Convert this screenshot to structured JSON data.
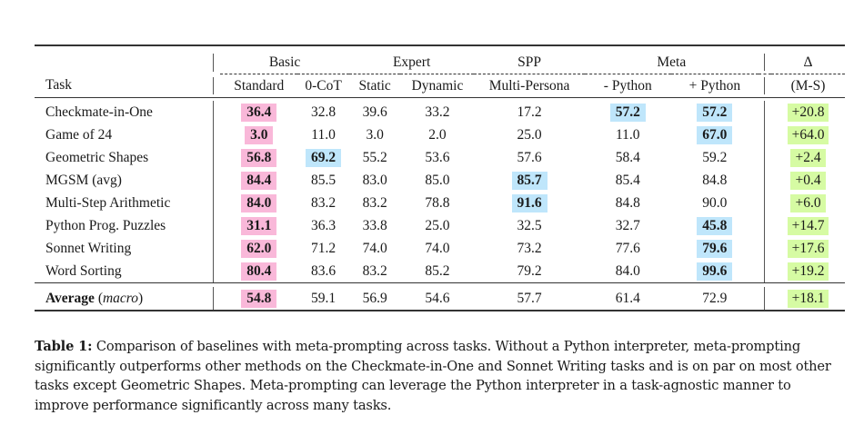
{
  "table": {
    "group_headers": {
      "basic": "Basic",
      "expert": "Expert",
      "spp": "SPP",
      "meta": "Meta",
      "delta": "Δ"
    },
    "column_headers": {
      "task": "Task",
      "standard": "Standard",
      "zero_cot": "0-CoT",
      "static": "Static",
      "dynamic": "Dynamic",
      "multi_persona": "Multi-Persona",
      "minus_python": "- Python",
      "plus_python": "+ Python",
      "delta_ms": "(M-S)"
    },
    "highlight_colors": {
      "standard_baseline": "#f9b8d9",
      "best_score": "#bfe6fb",
      "delta": "#d6fba3"
    },
    "rows": [
      {
        "task": "Checkmate-in-One",
        "standard": "36.4",
        "zero_cot": "32.8",
        "static": "39.6",
        "dynamic": "33.2",
        "multi_persona": "17.2",
        "minus_python": "57.2",
        "plus_python": "57.2",
        "delta": "+20.8"
      },
      {
        "task": "Game of 24",
        "standard": "3.0",
        "zero_cot": "11.0",
        "static": "3.0",
        "dynamic": "2.0",
        "multi_persona": "25.0",
        "minus_python": "11.0",
        "plus_python": "67.0",
        "delta": "+64.0"
      },
      {
        "task": "Geometric Shapes",
        "standard": "56.8",
        "zero_cot": "69.2",
        "static": "55.2",
        "dynamic": "53.6",
        "multi_persona": "57.6",
        "minus_python": "58.4",
        "plus_python": "59.2",
        "delta": "+2.4"
      },
      {
        "task": "MGSM (avg)",
        "standard": "84.4",
        "zero_cot": "85.5",
        "static": "83.0",
        "dynamic": "85.0",
        "multi_persona": "85.7",
        "minus_python": "85.4",
        "plus_python": "84.8",
        "delta": "+0.4"
      },
      {
        "task": "Multi-Step Arithmetic",
        "standard": "84.0",
        "zero_cot": "83.2",
        "static": "83.2",
        "dynamic": "78.8",
        "multi_persona": "91.6",
        "minus_python": "84.8",
        "plus_python": "90.0",
        "delta": "+6.0"
      },
      {
        "task": "Python Prog. Puzzles",
        "standard": "31.1",
        "zero_cot": "36.3",
        "static": "33.8",
        "dynamic": "25.0",
        "multi_persona": "32.5",
        "minus_python": "32.7",
        "plus_python": "45.8",
        "delta": "+14.7"
      },
      {
        "task": "Sonnet Writing",
        "standard": "62.0",
        "zero_cot": "71.2",
        "static": "74.0",
        "dynamic": "74.0",
        "multi_persona": "73.2",
        "minus_python": "77.6",
        "plus_python": "79.6",
        "delta": "+17.6"
      },
      {
        "task": "Word Sorting",
        "standard": "80.4",
        "zero_cot": "83.6",
        "static": "83.2",
        "dynamic": "85.2",
        "multi_persona": "79.2",
        "minus_python": "84.0",
        "plus_python": "99.6",
        "delta": "+19.2"
      }
    ],
    "average": {
      "label": "Average",
      "label_suffix": "(macro)",
      "standard": "54.8",
      "zero_cot": "59.1",
      "static": "56.9",
      "dynamic": "54.6",
      "multi_persona": "57.7",
      "minus_python": "61.4",
      "plus_python": "72.9",
      "delta": "+18.1"
    }
  },
  "caption": {
    "label": "Table 1:",
    "text": "Comparison of baselines with meta-prompting across tasks. Without a Python interpreter, meta-prompting significantly outperforms other methods on the Checkmate-in-One and Sonnet Writing tasks and is on par on most other tasks except Geometric Shapes. Meta-prompting can leverage the Python interpreter in a task-agnostic manner to improve performance significantly across many tasks."
  }
}
